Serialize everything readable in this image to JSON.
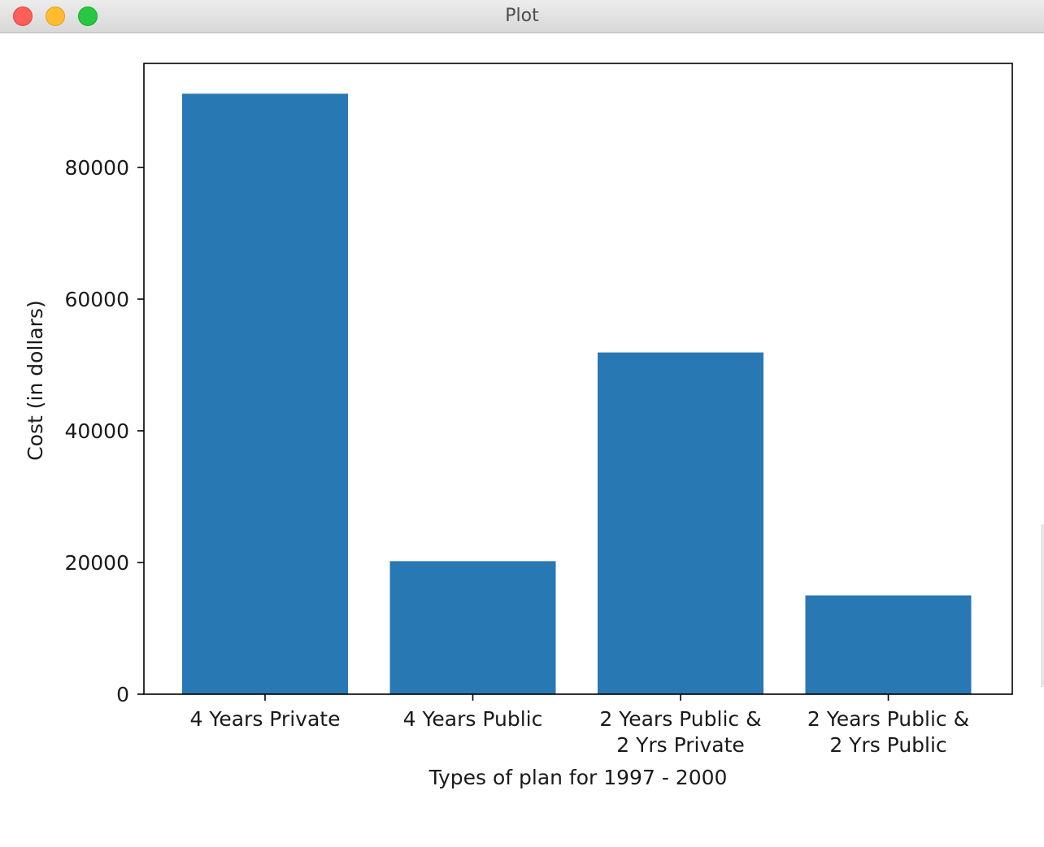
{
  "window": {
    "title": "Plot"
  },
  "chart_data": {
    "type": "bar",
    "title": "",
    "xlabel": "Types of plan for 1997 - 2000",
    "ylabel": "Cost (in dollars)",
    "categories": [
      [
        "4 Years Private"
      ],
      [
        "4 Years Public"
      ],
      [
        "2 Years Public &",
        "2 Yrs Private"
      ],
      [
        "2 Years Public &",
        "2 Yrs Public"
      ]
    ],
    "values": [
      91200,
      20200,
      51900,
      15000
    ],
    "yticks": [
      0,
      20000,
      40000,
      60000,
      80000
    ],
    "ylim": [
      0,
      95800
    ],
    "grid": false,
    "colors": {
      "bar": "#2878b4",
      "axis": "#000000"
    }
  }
}
